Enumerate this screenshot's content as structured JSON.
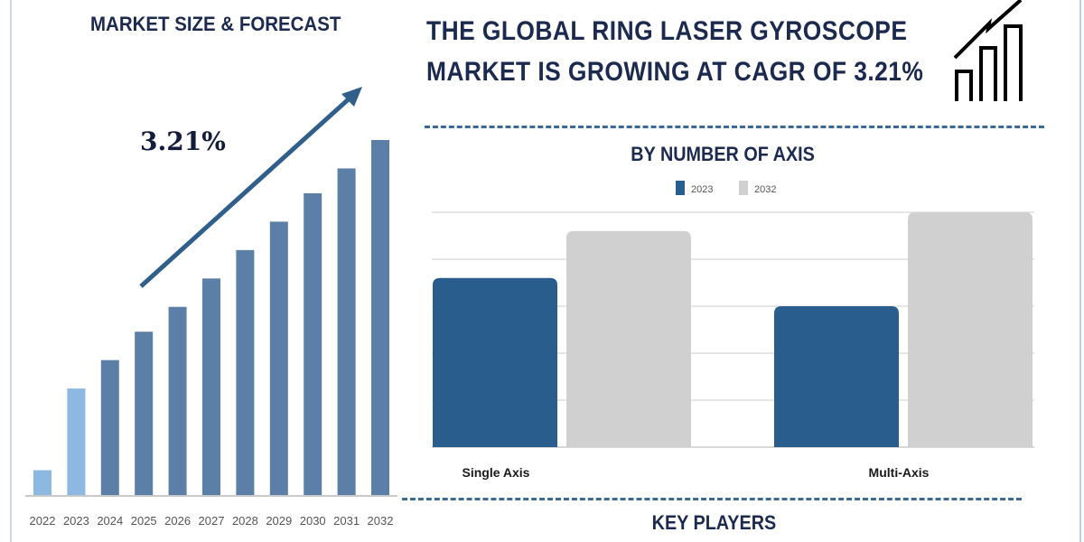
{
  "left_panel": {
    "title": "MARKET SIZE & FORECAST",
    "cagr_label": "3.21%"
  },
  "header": {
    "title_line_1": "THE GLOBAL RING LASER GYROSCOPE",
    "title_line_2": "MARKET IS GROWING AT CAGR OF 3.21%",
    "icon": "growth-chart-icon"
  },
  "right_panel": {
    "footer_title": "KEY PLAYERS"
  },
  "colors": {
    "navy_text": "#1b2a4e",
    "forecast_bar": "#5b7fa6",
    "historic_bar": "#8db8e2",
    "series_2023": "#285d8e",
    "series_2032": "#d0d0d0",
    "dash_line": "#3b6a96"
  },
  "chart_data": [
    {
      "type": "bar",
      "title": "MARKET SIZE & FORECAST",
      "annotation": "3.21%",
      "categories": [
        "2022",
        "2023",
        "2024",
        "2025",
        "2026",
        "2027",
        "2028",
        "2029",
        "2030",
        "2031",
        "2032"
      ],
      "values": [
        7,
        30,
        38,
        46,
        53,
        61,
        69,
        77,
        85,
        92,
        100
      ],
      "highlighted": [
        "2022",
        "2023"
      ],
      "xlabel": "",
      "ylabel": "",
      "grid": false
    },
    {
      "type": "bar",
      "title": "BY NUMBER OF AXIS",
      "categories": [
        "Single Axis",
        "Multi-Axis"
      ],
      "series": [
        {
          "name": "2023",
          "values": [
            3.6,
            3.0
          ]
        },
        {
          "name": "2032",
          "values": [
            4.6,
            5.0
          ]
        }
      ],
      "ylim": [
        0,
        5
      ],
      "grid": true,
      "legend": "top-center",
      "xlabel": "",
      "ylabel": ""
    }
  ]
}
